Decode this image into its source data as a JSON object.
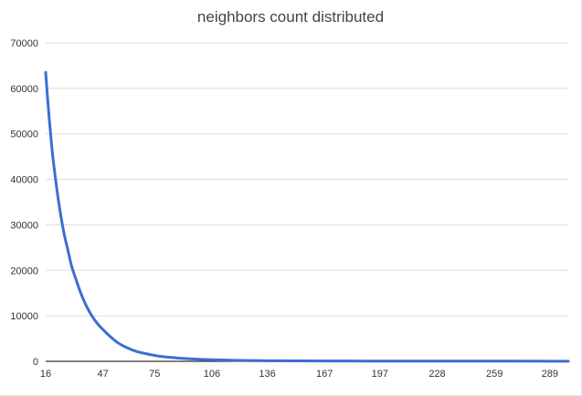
{
  "chart_data": {
    "type": "line",
    "title": "neighbors count distributed",
    "xlabel": "",
    "ylabel": "",
    "x_tick_labels": [
      "16",
      "47",
      "75",
      "106",
      "136",
      "167",
      "197",
      "228",
      "259",
      "289"
    ],
    "y_tick_labels": [
      "0",
      "10000",
      "20000",
      "30000",
      "40000",
      "50000",
      "60000",
      "70000"
    ],
    "xlim": [
      16,
      299
    ],
    "ylim": [
      0,
      70000
    ],
    "grid": true,
    "legend": "none",
    "series": [
      {
        "color": "#3a6fd0",
        "x": [
          16,
          17,
          18,
          19,
          20,
          22,
          24,
          26,
          28,
          30,
          32,
          35,
          38,
          41,
          44,
          47,
          50,
          55,
          60,
          65,
          70,
          75,
          80,
          90,
          100,
          106,
          115,
          125,
          136,
          150,
          167,
          197,
          228,
          259,
          289,
          299
        ],
        "y": [
          63500,
          58000,
          53000,
          48500,
          44500,
          38000,
          32500,
          28000,
          24500,
          21000,
          18500,
          15000,
          12200,
          10000,
          8300,
          7000,
          5800,
          4100,
          3000,
          2200,
          1700,
          1300,
          1000,
          650,
          430,
          350,
          250,
          180,
          130,
          100,
          80,
          55,
          45,
          40,
          35,
          35
        ]
      }
    ]
  }
}
